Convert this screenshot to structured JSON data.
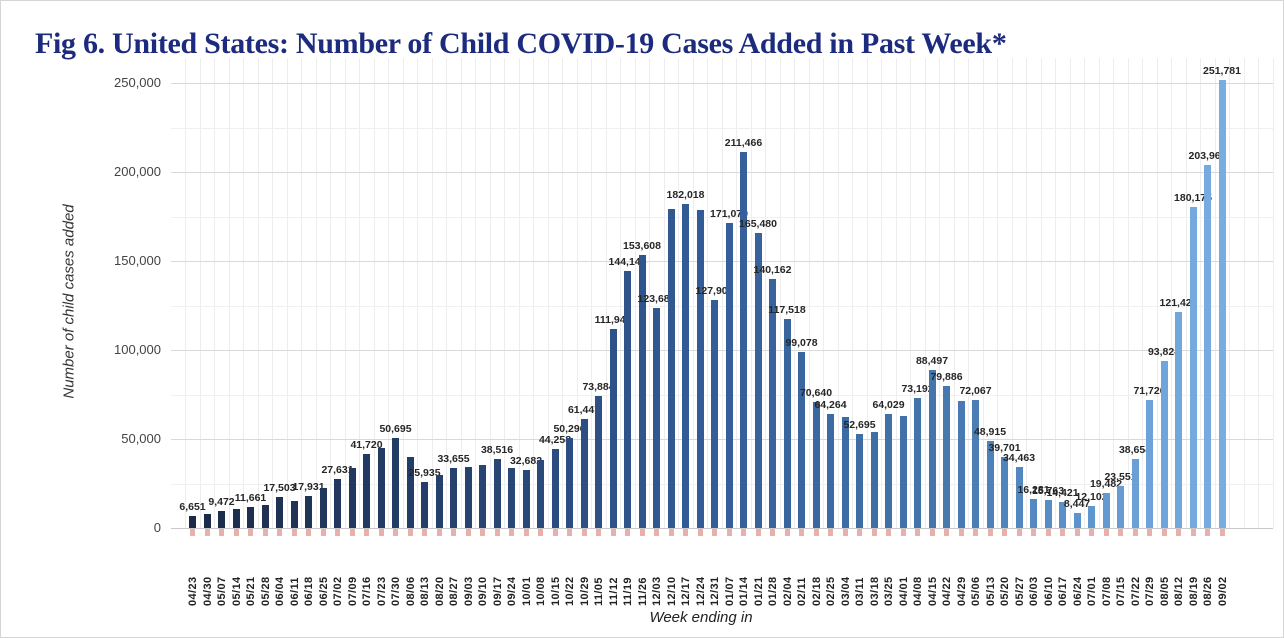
{
  "title": "Fig 6. United States: Number of Child COVID-19 Cases Added in Past Week*",
  "y_axis": {
    "label": "Number of child cases added",
    "ticks": [
      "0",
      "50,000",
      "100,000",
      "150,000",
      "200,000",
      "250,000"
    ]
  },
  "x_axis": {
    "label": "Week ending in"
  },
  "colors": {
    "title": "#1c2b7d",
    "data_label": "#262626",
    "grid_major": "#d9d9d9",
    "grid_minor": "#f0f0f0",
    "grid_vertical": "#ededed",
    "baseline": "#c9c9c9",
    "baseline_tick": "#e2948f",
    "bar_gradient_stops": [
      {
        "i": 0,
        "c": "#1c2a48"
      },
      {
        "i": 18,
        "c": "#25416d"
      },
      {
        "i": 36,
        "c": "#345d99"
      },
      {
        "i": 50,
        "c": "#4273a9"
      },
      {
        "i": 60,
        "c": "#5a8fc8"
      },
      {
        "i": 66,
        "c": "#6da3d9"
      },
      {
        "i": 71,
        "c": "#79ade1"
      }
    ]
  },
  "chart_data": {
    "type": "bar",
    "title": "Fig 6. United States: Number of Child COVID-19 Cases Added in Past Week*",
    "xlabel": "Week ending in",
    "ylabel": "Number of child cases added",
    "ylim": [
      0,
      250000
    ],
    "grid": true,
    "legend": "none",
    "categories": [
      "04/23",
      "04/30",
      "05/07",
      "05/14",
      "05/21",
      "05/28",
      "06/04",
      "06/11",
      "06/18",
      "06/25",
      "07/02",
      "07/09",
      "07/16",
      "07/23",
      "07/30",
      "08/06",
      "08/13",
      "08/20",
      "08/27",
      "09/03",
      "09/10",
      "09/17",
      "09/24",
      "10/01",
      "10/08",
      "10/15",
      "10/22",
      "10/29",
      "11/05",
      "11/12",
      "11/19",
      "11/26",
      "12/03",
      "12/10",
      "12/17",
      "12/24",
      "12/31",
      "01/07",
      "01/14",
      "01/21",
      "01/28",
      "02/04",
      "02/11",
      "02/18",
      "02/25",
      "03/04",
      "03/11",
      "03/18",
      "03/25",
      "04/01",
      "04/08",
      "04/15",
      "04/22",
      "04/29",
      "05/06",
      "05/13",
      "05/20",
      "05/27",
      "06/03",
      "06/10",
      "06/17",
      "06/24",
      "07/01",
      "07/08",
      "07/15",
      "07/22",
      "07/29",
      "08/05",
      "08/12",
      "08/19",
      "08/26",
      "09/02"
    ],
    "values": [
      6651,
      7800,
      9472,
      10800,
      11661,
      12800,
      17503,
      15000,
      17931,
      22500,
      27631,
      33500,
      41720,
      45000,
      50695,
      40000,
      25935,
      30000,
      33655,
      34500,
      35500,
      38516,
      33500,
      32682,
      38000,
      44258,
      50296,
      61447,
      73884,
      111945,
      144145,
      153608,
      123688,
      179000,
      182018,
      178500,
      127906,
      171079,
      211466,
      165480,
      140162,
      117518,
      99078,
      70640,
      64264,
      62500,
      52695,
      54000,
      64029,
      63000,
      73192,
      88497,
      79886,
      71600,
      72067,
      48915,
      39701,
      34463,
      16281,
      15763,
      14421,
      8447,
      12102,
      19482,
      23551,
      38654,
      71726,
      93824,
      121427,
      180175,
      203962,
      251781
    ],
    "bar_labels": [
      "6,651",
      null,
      "9,472",
      null,
      "11,661",
      null,
      "17,503",
      null,
      "17,931",
      null,
      "27,631",
      null,
      "41,720",
      null,
      "50,695",
      null,
      "25,935",
      null,
      "33,655",
      null,
      null,
      "38,516",
      null,
      "32,682",
      null,
      "44,258",
      "50,296",
      "61,447",
      "73,884",
      "111,945",
      "144,145",
      "153,608",
      "123,688",
      null,
      "182,018",
      null,
      "127,906",
      "171,079",
      "211,466",
      "165,480",
      "140,162",
      "117,518",
      "99,078",
      "70,640",
      "64,264",
      null,
      "52,695",
      null,
      "64,029",
      null,
      "73,192",
      "88,497",
      "79,886",
      null,
      "72,067",
      "48,915",
      "39,701",
      "34,463",
      "16,281",
      "15,763",
      "14,421",
      "8,447",
      "12,102",
      "19,482",
      "23,551",
      "38,654",
      "71,726",
      "93,824",
      "121,427",
      "180,175",
      "203,962",
      "251,781"
    ]
  }
}
